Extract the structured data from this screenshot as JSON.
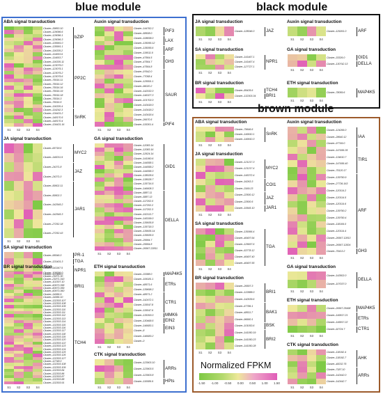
{
  "modules": [
    {
      "id": "blue",
      "title": "blue module",
      "color": "#3c6fcf"
    },
    {
      "id": "black",
      "title": "black module",
      "color": "#111111"
    },
    {
      "id": "brown",
      "title": "brown module",
      "color": "#9c5a2a"
    }
  ],
  "samples": [
    "S1",
    "S2",
    "S3",
    "S4"
  ],
  "legend": {
    "title": "Normalized FPKM",
    "ticks": [
      "-1.50",
      "-1.00",
      "-0.50",
      "0.00",
      "0.50",
      "1.00",
      "1.50"
    ],
    "colors": {
      "low": "#7dc944",
      "mid": "#eee89a",
      "high": "#e05cb8"
    }
  },
  "panels": [
    {
      "title": "ABA signal transduction",
      "module": "blue",
      "labels": [
        "Cluster‒39853.10",
        "Cluster‒129096.6",
        "Cluster‒129096.1",
        "Cluster‒129096.3",
        "Cluster‒135991.0",
        "Cluster‒135991.1",
        "Cluster‒116335.2",
        "Cluster‒114003.6",
        "Cluster‒114003.7",
        "Cluster‒116335.11",
        "Cluster‒123075.0",
        "Cluster‒123075.1",
        "Cluster‒123075.2",
        "Cluster‒123075.6",
        "Cluster‒75516.11",
        "Cluster‒75516.12",
        "Cluster‒75516.16",
        "Cluster‒75516.19",
        "Cluster‒75516.18",
        "Cluster‒75516.3",
        "Cluster‒75516.5",
        "Cluster‒116335.4",
        "Cluster‒114242.3",
        "Cluster‒134431.2",
        "Cluster‒148170.5",
        "Cluster‒148170.4",
        "Cluster‒134431.16"
      ],
      "genes": [
        {
          "name": "bZIP",
          "start": 0,
          "end": 5
        },
        {
          "name": "PP2C",
          "start": 6,
          "end": 21
        },
        {
          "name": "SnRK",
          "start": 22,
          "end": 26
        }
      ]
    },
    {
      "title": "Auxin signal transduction",
      "module": "blue",
      "labels": [
        "Cluster‒144762.2",
        "Cluster‒58508.0",
        "Cluster‒108838.0",
        "Cluster‒135055.12",
        "Cluster‒135055.6",
        "Cluster‒119511.0",
        "Cluster‒47564.5",
        "Cluster‒47564.7",
        "Cluster‒47564.8",
        "Cluster‒97642.0",
        "Cluster‒77058.4",
        "Cluster‒125591.1",
        "Cluster‒96020.2",
        "Cluster‒142032.0",
        "Cluster‒146327.3",
        "Cluster‒101702.0",
        "Cluster‒143418.0",
        "Cluster‒143418.2",
        "Cluster‒143418.4",
        "Cluster‒26670.5",
        "Cluster‒115301.4"
      ],
      "genes": [
        {
          "name": "PIF3",
          "start": 0,
          "end": 1
        },
        {
          "name": "LAX",
          "start": 2,
          "end": 3
        },
        {
          "name": "ARF",
          "start": 4,
          "end": 5
        },
        {
          "name": "GH3",
          "start": 6,
          "end": 8
        },
        {
          "name": "SAUR",
          "start": 9,
          "end": 19
        },
        {
          "name": "PIF4",
          "start": 20,
          "end": 20
        }
      ]
    },
    {
      "title": "JA signal transduction",
      "module": "blue",
      "labels": [
        "Cluster‒65718.6",
        "Cluster‒148211.9",
        "Cluster‒24371.8",
        "Cluster‒24371.0",
        "Cluster‒59502.11",
        "Cluster‒59502.3",
        "Cluster‒142545.2",
        "Cluster‒142545.3",
        "Cluster‒27252.18",
        "Cluster‒27252.43"
      ],
      "genes": [
        {
          "name": "MYC2",
          "start": 0,
          "end": 1
        },
        {
          "name": "JAZ",
          "start": 2,
          "end": 3
        },
        {
          "name": "JAR1",
          "start": 4,
          "end": 9
        }
      ]
    },
    {
      "title": "GA signal transduction",
      "module": "blue",
      "labels": [
        "Cluster‒12083.14",
        "Cluster‒12083.16",
        "Cluster‒12624.14",
        "Cluster‒141060.6",
        "Cluster‒144558.1",
        "Cluster‒144558.2",
        "Cluster‒144558.3",
        "Cluster‒138028.6",
        "Cluster‒138028.7",
        "Cluster‒135716.5",
        "Cluster‒146608.3",
        "Cluster‒5887.11",
        "Cluster‒5887.13",
        "Cluster‒117202.0",
        "Cluster‒117202.2",
        "Cluster‒117202.3",
        "Cluster‒152113.7",
        "Cluster‒145199.0",
        "Cluster‒139935.8",
        "Cluster‒135718.3",
        "Cluster‒139935.14",
        "Cluster‒139935.9",
        "Cluster‒29994.7",
        "Cluster‒29994.8",
        "Cluster‒26567.22811"
      ],
      "genes": [
        {
          "name": "GID1",
          "start": 0,
          "end": 10
        },
        {
          "name": "DELLA",
          "start": 11,
          "end": 24
        }
      ]
    },
    {
      "title": "SA signal transduction",
      "module": "blue",
      "labels": [
        "Cluster‒95546.0",
        "Cluster‒131401.3",
        "Cluster‒141167.5",
        "Cluster‒122466.0"
      ],
      "genes": [
        {
          "name": "PR-1",
          "start": 0,
          "end": 0
        },
        {
          "name": "TGA",
          "start": 1,
          "end": 1
        },
        {
          "name": "NPR1",
          "start": 2,
          "end": 3
        }
      ]
    },
    {
      "title": "BR signal transduction",
      "module": "blue",
      "labels": [
        "Cluster‒100006.0",
        "Cluster‒21871.30",
        "Cluster‒21871.343",
        "Cluster‒102307.10",
        "Cluster‒60973.358",
        "Cluster‒60973.359",
        "Cluster‒60973.360",
        "Cluster‒14956.9",
        "Cluster‒14956.10",
        "Cluster‒132303.107",
        "Cluster‒132303.108",
        "Cluster‒132303.109",
        "Cluster‒132303.110",
        "Cluster‒132303.111",
        "Cluster‒132303.112",
        "Cluster‒132303.113",
        "Cluster‒132303.114",
        "Cluster‒132303.115",
        "Cluster‒132303.116",
        "Cluster‒132303.117",
        "Cluster‒132303.118",
        "Cluster‒132303.119",
        "Cluster‒132303.120",
        "Cluster‒132303.122",
        "Cluster‒132303.123",
        "Cluster‒132303.124",
        "Cluster‒132303.125",
        "Cluster‒132303.126",
        "Cluster‒132303.127",
        "Cluster‒12748.0",
        "Cluster‒132303.108",
        "Cluster‒132303.109",
        "Cluster‒132303.84",
        "Cluster‒132303.86",
        "Cluster‒132303.87",
        "Cluster‒132303.88",
        "Cluster‒132303.91"
      ],
      "genes": [
        {
          "name": "BRI1",
          "start": 0,
          "end": 9
        },
        {
          "name": "TCH4",
          "start": 10,
          "end": 36
        }
      ]
    },
    {
      "title": "ETH signal transduction",
      "module": "blue",
      "labels": [
        "Cluster‒33388.0",
        "Cluster‒106181.1",
        "Cluster‒48571.6",
        "Cluster‒139698.2",
        "Cluster‒48571.2",
        "Cluster‒142472.1",
        "Cluster‒115047.8",
        "Cluster‒115047.6",
        "Cluster‒135393.0",
        "Cluster‒130468.5",
        "Cluster‒146683.1",
        "Cluster‒8",
        "Cluster‒146683.2",
        "Cluster‒0"
      ],
      "genes": [
        {
          "name": "MAP4K5",
          "start": 0,
          "end": 0
        },
        {
          "name": "ETRs",
          "start": 1,
          "end": 3
        },
        {
          "name": "CTR1",
          "start": 4,
          "end": 7
        },
        {
          "name": "MMK6",
          "start": 8,
          "end": 8
        },
        {
          "name": "EIN2",
          "start": 9,
          "end": 9
        },
        {
          "name": "EIN3",
          "start": 10,
          "end": 11
        }
      ]
    },
    {
      "title": "CTK signal transduction",
      "module": "blue",
      "labels": [
        "Cluster‒123903.10",
        "Cluster‒123903.5",
        "Cluster‒123903.8",
        "Cluster‒110089.9"
      ],
      "genes": [
        {
          "name": "ARRs",
          "start": 0,
          "end": 2
        },
        {
          "name": "HPts",
          "start": 3,
          "end": 3
        }
      ]
    },
    {
      "title": "JA signal transduction",
      "module": "black",
      "labels": [
        "Cluster‒128046.0"
      ],
      "genes": [
        {
          "name": "JAZ",
          "start": 0,
          "end": 0
        }
      ]
    },
    {
      "title": "Auxin signal transduction",
      "module": "black",
      "labels": [
        "Cluster‒129261.0"
      ],
      "genes": [
        {
          "name": "ARF",
          "start": 0,
          "end": 0
        }
      ]
    },
    {
      "title": "SA signal transduction",
      "module": "black",
      "labels": [
        "Cluster‒141467.1",
        "Cluster‒141467.4",
        "Cluster‒127727.1"
      ],
      "genes": [
        {
          "name": "NPR1",
          "start": 0,
          "end": 2
        }
      ]
    },
    {
      "title": "GA signal transduction",
      "module": "black",
      "labels": [
        "Cluster‒33326.0",
        "Cluster‒130742.13"
      ],
      "genes": [
        {
          "name": "GID1",
          "start": 0,
          "end": 0
        },
        {
          "name": "DELLA",
          "start": 1,
          "end": 1
        }
      ]
    },
    {
      "title": "BR signal transduction",
      "module": "black",
      "labels": [
        "Cluster‒89435.6",
        "Cluster‒132303.34"
      ],
      "genes": [
        {
          "name": "TCH4",
          "start": 0,
          "end": 0
        },
        {
          "name": "BRI1",
          "start": 1,
          "end": 1
        }
      ]
    },
    {
      "title": "ETH signal transduction",
      "module": "black",
      "labels": [
        "Cluster‒78059.6"
      ],
      "genes": [
        {
          "name": "MAP4K5",
          "start": 0,
          "end": 0
        }
      ]
    },
    {
      "title": "ABA signal transduction",
      "module": "brown",
      "labels": [
        "Cluster‒79646.6",
        "Cluster‒149910.1",
        "Cluster‒149910.3"
      ],
      "genes": [
        {
          "name": "SnRK",
          "start": 0,
          "end": 2
        }
      ]
    },
    {
      "title": "Auxin signal transduction",
      "module": "brown",
      "labels": [
        "Cluster‒124266.0",
        "Cluster‒28640.12",
        "Cluster‒97749.0",
        "Cluster‒147456.35",
        "Cluster‒134610.7",
        "Cluster‒147456.40",
        "Cluster‒75120.17",
        "Cluster‒139790.9",
        "Cluster‒27736.163",
        "Cluster‒120114.2",
        "Cluster‒120114.5",
        "Cluster‒120114.6",
        "Cluster‒139790.2",
        "Cluster‒139790.4",
        "Cluster‒118106.0",
        "Cluster‒120114.4",
        "Cluster‒26567.12813",
        "Cluster‒26567.12824",
        "Cluster‒75413.2"
      ],
      "genes": [
        {
          "name": "IAA",
          "start": 0,
          "end": 2
        },
        {
          "name": "TIR1",
          "start": 3,
          "end": 6
        },
        {
          "name": "ARF",
          "start": 7,
          "end": 17
        },
        {
          "name": "GH3",
          "start": 18,
          "end": 18
        }
      ]
    },
    {
      "title": "JA signal transduction",
      "module": "brown",
      "labels": [
        "Cluster‒121217.3",
        "Cluster‒121217.4",
        "Cluster‒145372.4",
        "Cluster‒16263.3",
        "Cluster‒3169.23",
        "Cluster‒22500.12",
        "Cluster‒22500.5",
        "Cluster‒10645.10"
      ],
      "genes": [
        {
          "name": "MYC2",
          "start": 0,
          "end": 2
        },
        {
          "name": "COI1",
          "start": 3,
          "end": 4
        },
        {
          "name": "JAZ",
          "start": 5,
          "end": 6
        },
        {
          "name": "JAR1",
          "start": 7,
          "end": 7
        }
      ]
    },
    {
      "title": "SA signal transduction",
      "module": "brown",
      "labels": [
        "Cluster‒139366.4",
        "Cluster‒46497.64",
        "Cluster‒125657.6",
        "Cluster‒53778.12",
        "Cluster‒46497.40",
        "Cluster‒46497.55"
      ],
      "genes": [
        {
          "name": "TGA",
          "start": 0,
          "end": 5
        }
      ]
    },
    {
      "title": "BR signal transduction",
      "module": "brown",
      "labels": [
        "Cluster‒26597.3",
        "Cluster‒122888.0",
        "Cluster‒142639.6",
        "Cluster‒67786.1",
        "Cluster‒48511.7",
        "Cluster‒96660.1",
        "Cluster‒101053.6",
        "Cluster‒141050.19",
        "Cluster‒141050.23",
        "Cluster‒141050.28"
      ],
      "genes": [
        {
          "name": "BRI1",
          "start": 0,
          "end": 2
        },
        {
          "name": "BAK1",
          "start": 3,
          "end": 5
        },
        {
          "name": "BSK",
          "start": 6,
          "end": 6
        },
        {
          "name": "BRI2",
          "start": 7,
          "end": 9
        }
      ]
    },
    {
      "title": "GA signal transduction",
      "module": "brown",
      "labels": [
        "Cluster‒143502.0",
        "Cluster‒107037.0"
      ],
      "genes": [
        {
          "name": "DELLA",
          "start": 0,
          "end": 1
        }
      ]
    },
    {
      "title": "ETH signal transduction",
      "module": "brown",
      "labels": [
        "Cluster‒26567.25498",
        "Cluster‒149517.21",
        "Cluster‒145817.22",
        "Cluster‒92724.7"
      ],
      "genes": [
        {
          "name": "MAP4K5",
          "start": 0,
          "end": 0
        },
        {
          "name": "ETRs",
          "start": 1,
          "end": 2
        },
        {
          "name": "CTR1",
          "start": 3,
          "end": 3
        }
      ]
    },
    {
      "title": "CTK signal transduction",
      "module": "brown",
      "labels": [
        "Cluster‒118192.4",
        "Cluster‒118192.7",
        "Cluster‒48232.75",
        "Cluster‒7187.10",
        "Cluster‒142442.0",
        "Cluster‒142442.7"
      ],
      "genes": [
        {
          "name": "AHK",
          "start": 0,
          "end": 2
        },
        {
          "name": "ARRs",
          "start": 3,
          "end": 5
        }
      ]
    }
  ]
}
